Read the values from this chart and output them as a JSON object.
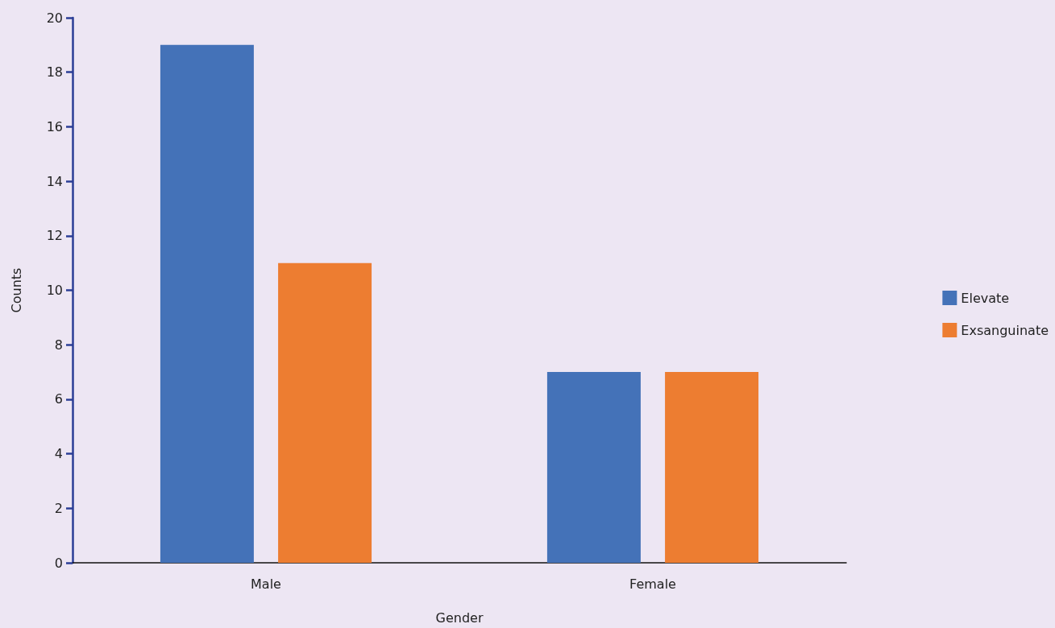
{
  "chart_data": {
    "type": "bar",
    "xlabel": "Gender",
    "ylabel": "Counts",
    "categories": [
      "Male",
      "Female"
    ],
    "series": [
      {
        "name": "Elevate",
        "color": "#4472b8",
        "values": [
          19,
          7
        ]
      },
      {
        "name": "Exsanguinate",
        "color": "#ed7d31",
        "values": [
          11,
          7
        ]
      }
    ],
    "ylim": [
      0,
      20
    ],
    "yticks": [
      0,
      2,
      4,
      6,
      8,
      10,
      12,
      14,
      16,
      18,
      20
    ],
    "grid": false,
    "legend": "right"
  }
}
